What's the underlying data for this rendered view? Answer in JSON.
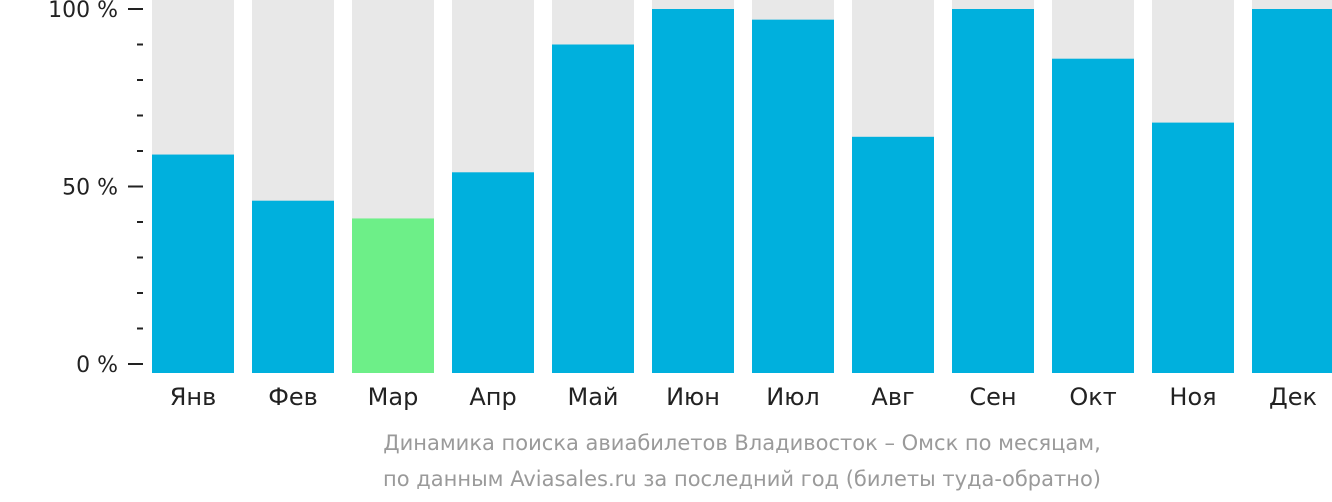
{
  "chart_data": {
    "type": "bar",
    "categories": [
      "Янв",
      "Фев",
      "Мар",
      "Апр",
      "Май",
      "Июн",
      "Июл",
      "Авг",
      "Сен",
      "Окт",
      "Ноя",
      "Дек"
    ],
    "values": [
      59,
      46,
      41,
      54,
      90,
      100,
      97,
      64,
      100,
      86,
      68,
      100
    ],
    "highlight_index": 2,
    "y_ticks": [
      {
        "value": 0,
        "label": "0 %"
      },
      {
        "value": 50,
        "label": "50 %"
      },
      {
        "value": 100,
        "label": "100 %"
      }
    ],
    "ylim": [
      0,
      100
    ],
    "grid": false,
    "colors": {
      "bar": "#00b0dd",
      "highlight": "#6def88",
      "background_bar": "#e8e8e8",
      "axis": "#222222"
    }
  },
  "caption": {
    "line1": "Динамика поиска авиабилетов Владивосток – Омск по месяцам,",
    "line2": "по данным Aviasales.ru за последний год (билеты туда-обратно)"
  }
}
